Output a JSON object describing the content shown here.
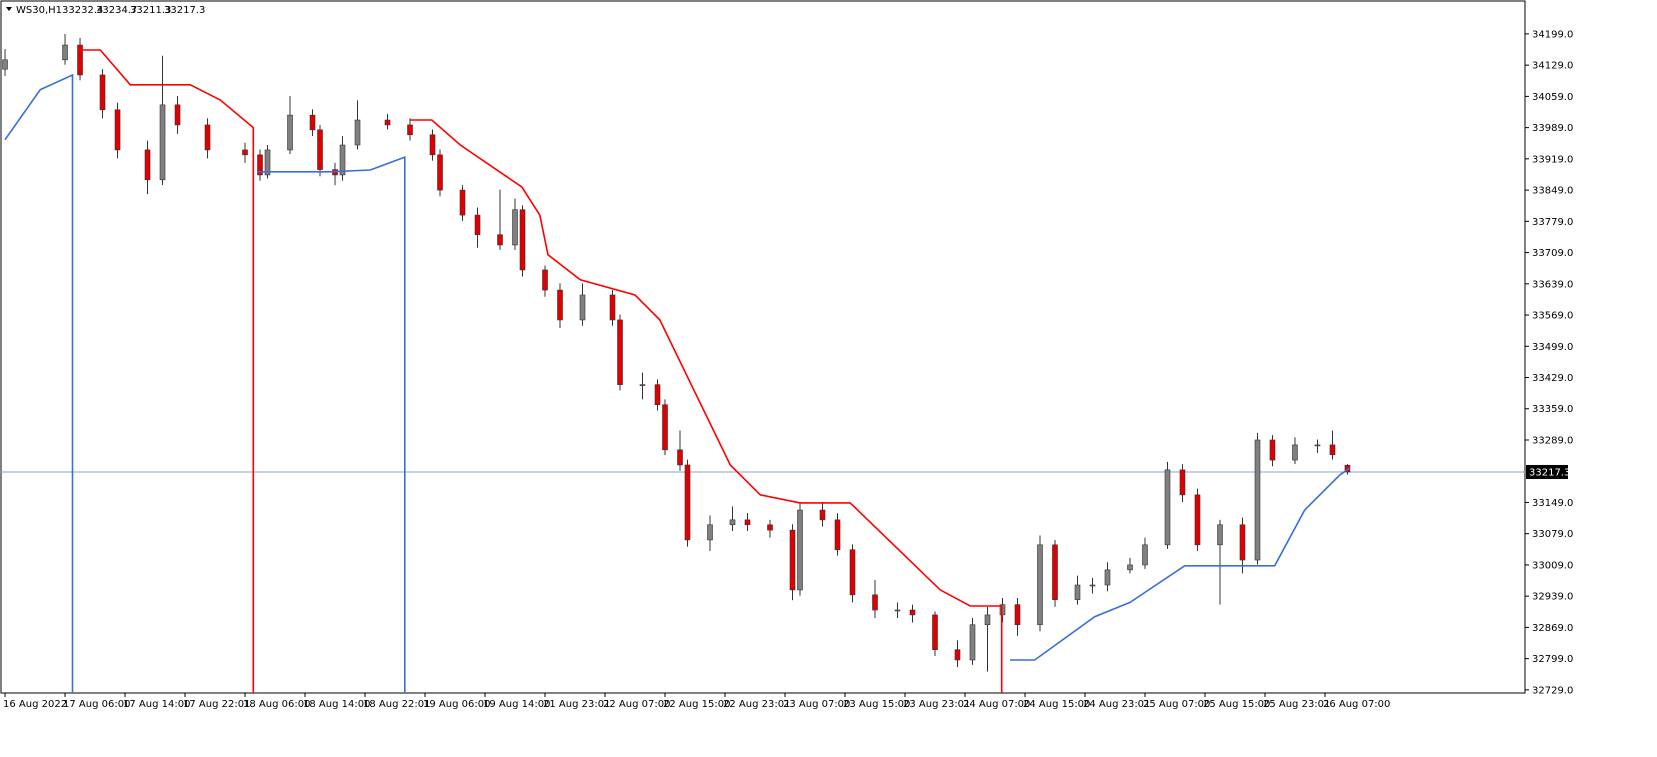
{
  "chart_data": {
    "type": "candlestick",
    "symbol": "WS30,H1",
    "xlim": [
      -0.67,
      202.67
    ],
    "ylim": [
      32722,
      34275
    ],
    "yticks": [
      {
        "value": 34199,
        "label": "34199.0"
      },
      {
        "value": 34129,
        "label": "34129.0"
      },
      {
        "value": 34059,
        "label": "34059.0"
      },
      {
        "value": 33989,
        "label": "33989.0"
      },
      {
        "value": 33919,
        "label": "33919.0"
      },
      {
        "value": 33849,
        "label": "33849.0"
      },
      {
        "value": 33779,
        "label": "33779.0"
      },
      {
        "value": 33709,
        "label": "33709.0"
      },
      {
        "value": 33639,
        "label": "33639.0"
      },
      {
        "value": 33569,
        "label": "33569.0"
      },
      {
        "value": 33499,
        "label": "33499.0"
      },
      {
        "value": 33429,
        "label": "33429.0"
      },
      {
        "value": 33359,
        "label": "33359.0"
      },
      {
        "value": 33289,
        "label": "33289.0"
      },
      {
        "value": 33149,
        "label": "33149.0"
      },
      {
        "value": 33079,
        "label": "33079.0"
      },
      {
        "value": 33009,
        "label": "33009.0"
      },
      {
        "value": 32939,
        "label": "32939.0"
      },
      {
        "value": 32869,
        "label": "32869.0"
      },
      {
        "value": 32799,
        "label": "32799.0"
      },
      {
        "value": 32729,
        "label": "32729.0"
      }
    ],
    "xticks": [
      {
        "value": 0,
        "label": "16 Aug 2022"
      },
      {
        "value": 8,
        "label": "17 Aug 06:00"
      },
      {
        "value": 16,
        "label": "17 Aug 14:00"
      },
      {
        "value": 24,
        "label": "17 Aug 22:01"
      },
      {
        "value": 32,
        "label": "18 Aug 06:00"
      },
      {
        "value": 40,
        "label": "18 Aug 14:00"
      },
      {
        "value": 48,
        "label": "18 Aug 22:01"
      },
      {
        "value": 56,
        "label": "19 Aug 06:00"
      },
      {
        "value": 64,
        "label": "19 Aug 14:00"
      },
      {
        "value": 72,
        "label": "21 Aug 23:01"
      },
      {
        "value": 80,
        "label": "22 Aug 07:00"
      },
      {
        "value": 88,
        "label": "22 Aug 15:00"
      },
      {
        "value": 96,
        "label": "22 Aug 23:01"
      },
      {
        "value": 104,
        "label": "23 Aug 07:00"
      },
      {
        "value": 112,
        "label": "23 Aug 15:00"
      },
      {
        "value": 120,
        "label": "23 Aug 23:01"
      },
      {
        "value": 128,
        "label": "24 Aug 07:00"
      },
      {
        "value": 136,
        "label": "24 Aug 15:00"
      },
      {
        "value": 144,
        "label": "24 Aug 23:01"
      },
      {
        "value": 152,
        "label": "25 Aug 07:00"
      },
      {
        "value": 160,
        "label": "25 Aug 15:00"
      },
      {
        "value": 168,
        "label": "25 Aug 23:01"
      },
      {
        "value": 176,
        "label": "26 Aug 07:00"
      }
    ],
    "bull_color": "#808080",
    "bear_color": "#e00000",
    "price_line_color": "#8aa4c8",
    "candles": [
      [
        0,
        34120,
        34165,
        34105,
        34141
      ],
      [
        8,
        34141,
        34199,
        34130,
        34174
      ],
      [
        10,
        34174,
        34190,
        34095,
        34107
      ],
      [
        13,
        34107,
        34120,
        34010,
        34029
      ],
      [
        15,
        34029,
        34045,
        33920,
        33939
      ],
      [
        19,
        33939,
        33960,
        33840,
        33872
      ],
      [
        21,
        33872,
        34150,
        33860,
        34040
      ],
      [
        23,
        34040,
        34060,
        33975,
        33995
      ],
      [
        27,
        33995,
        34010,
        33920,
        33939
      ],
      [
        32,
        33939,
        33955,
        33910,
        33928
      ],
      [
        34,
        33928,
        33940,
        33870,
        33883
      ],
      [
        35,
        33883,
        33950,
        33875,
        33939
      ],
      [
        38,
        33939,
        34060,
        33930,
        34017
      ],
      [
        41,
        34017,
        34030,
        33970,
        33984
      ],
      [
        42,
        33984,
        33995,
        33880,
        33895
      ],
      [
        44,
        33895,
        33910,
        33860,
        33883
      ],
      [
        45,
        33883,
        33970,
        33870,
        33950
      ],
      [
        47,
        33950,
        34050,
        33940,
        34006
      ],
      [
        51,
        34006,
        34020,
        33985,
        33995
      ],
      [
        54,
        33995,
        34010,
        33960,
        33973
      ],
      [
        57,
        33973,
        33985,
        33915,
        33928
      ],
      [
        58,
        33928,
        33940,
        33835,
        33849
      ],
      [
        61,
        33849,
        33860,
        33780,
        33793
      ],
      [
        63,
        33793,
        33810,
        33720,
        33749
      ],
      [
        66,
        33749,
        33850,
        33715,
        33726
      ],
      [
        68,
        33726,
        33830,
        33715,
        33805
      ],
      [
        69,
        33805,
        33815,
        33655,
        33670
      ],
      [
        72,
        33670,
        33680,
        33610,
        33625
      ],
      [
        74,
        33625,
        33640,
        33540,
        33558
      ],
      [
        77,
        33558,
        33640,
        33545,
        33614
      ],
      [
        81,
        33614,
        33625,
        33545,
        33558
      ],
      [
        82,
        33558,
        33570,
        33400,
        33413
      ],
      [
        85,
        33413,
        33440,
        33380,
        33413
      ],
      [
        87,
        33413,
        33425,
        33355,
        33368
      ],
      [
        88,
        33368,
        33380,
        33255,
        33267
      ],
      [
        90,
        33267,
        33310,
        33220,
        33233
      ],
      [
        91,
        33233,
        33245,
        33050,
        33065
      ],
      [
        94,
        33065,
        33120,
        33040,
        33099
      ],
      [
        97,
        33099,
        33140,
        33085,
        33110
      ],
      [
        99,
        33110,
        33125,
        33085,
        33099
      ],
      [
        102,
        33099,
        33110,
        33070,
        33087
      ],
      [
        105,
        33087,
        33100,
        32930,
        32953
      ],
      [
        106,
        32953,
        33150,
        32940,
        33132
      ],
      [
        109,
        33132,
        33150,
        33095,
        33110
      ],
      [
        111,
        33110,
        33125,
        33030,
        33043
      ],
      [
        113,
        33043,
        33055,
        32925,
        32942
      ],
      [
        116,
        32942,
        32975,
        32890,
        32908
      ],
      [
        119,
        32908,
        32925,
        32890,
        32908
      ],
      [
        121,
        32908,
        32920,
        32880,
        32897
      ],
      [
        124,
        32897,
        32905,
        32805,
        32819
      ],
      [
        127,
        32819,
        32840,
        32780,
        32796
      ],
      [
        129,
        32796,
        32890,
        32785,
        32875
      ],
      [
        131,
        32875,
        32915,
        32770,
        32897
      ],
      [
        133,
        32897,
        32935,
        32880,
        32920
      ],
      [
        135,
        32920,
        32935,
        32850,
        32875
      ],
      [
        138,
        32875,
        33075,
        32860,
        33054
      ],
      [
        140,
        33054,
        33065,
        32915,
        32931
      ],
      [
        143,
        32931,
        32985,
        32920,
        32964
      ],
      [
        145,
        32964,
        32980,
        32945,
        32964
      ],
      [
        147,
        32964,
        33015,
        32950,
        32998
      ],
      [
        150,
        32998,
        33025,
        32990,
        33009
      ],
      [
        152,
        33009,
        33070,
        33000,
        33054
      ],
      [
        155,
        33054,
        33240,
        33045,
        33222
      ],
      [
        157,
        33222,
        33235,
        33150,
        33166
      ],
      [
        159,
        33166,
        33180,
        33040,
        33054
      ],
      [
        162,
        33054,
        33110,
        32920,
        33099
      ],
      [
        165,
        33099,
        33115,
        32990,
        33020
      ],
      [
        167,
        33020,
        33305,
        33010,
        33289
      ],
      [
        169,
        33289,
        33300,
        33230,
        33244
      ],
      [
        172,
        33244,
        33295,
        33235,
        33278
      ],
      [
        175,
        33278,
        33290,
        33260,
        33278
      ],
      [
        177,
        33278,
        33310,
        33245,
        33256
      ],
      [
        179,
        33232.4,
        33234.7,
        33211.3,
        33217.3
      ]
    ],
    "lines": [
      {
        "color": "#3a6fd8",
        "x": [
          0,
          4.7,
          9,
          9
        ],
        "values": [
          33962,
          34074,
          34107,
          32722
        ]
      },
      {
        "color": "#ff0000",
        "x": [
          9.7,
          12.7,
          16.7,
          24.7,
          28.7,
          33.1,
          33.1
        ],
        "values": [
          34163,
          34163,
          34085,
          34085,
          34051,
          33989,
          32722
        ]
      },
      {
        "color": "#3a6fd8",
        "x": [
          33.7,
          43.3,
          48.7,
          53.3,
          53.3
        ],
        "values": [
          33890,
          33890,
          33894,
          33923,
          32722
        ]
      },
      {
        "color": "#ff0000",
        "x": [
          54,
          56.9,
          60.7,
          68.9,
          71.3,
          72.4,
          76.7,
          84,
          87.3,
          96.7,
          100.7,
          106,
          112.7,
          124.7,
          128.7,
          132.9,
          132.9
        ],
        "values": [
          34006,
          34006,
          33950,
          33856,
          33793,
          33704,
          33648,
          33614,
          33558,
          33233,
          33166,
          33148,
          33148,
          32953,
          32917,
          32917,
          32722
        ]
      },
      {
        "color": "#3a6fd8",
        "x": [
          134,
          137.3,
          145.3,
          150,
          157.3,
          169.3,
          173.3,
          178,
          179.3
        ],
        "values": [
          32796,
          32796,
          32893,
          32925,
          33007,
          33007,
          33132,
          33211,
          33226
        ]
      }
    ]
  }
}
